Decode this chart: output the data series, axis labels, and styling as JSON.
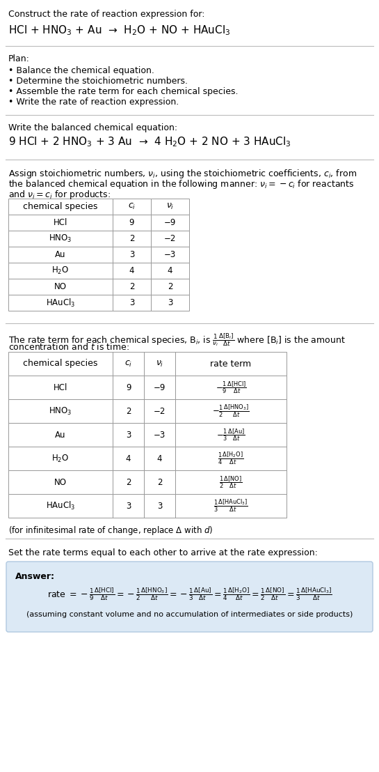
{
  "title_line1": "Construct the rate of reaction expression for:",
  "title_line2": "HCl + HNO$_3$ + Au  →  H$_2$O + NO + HAuCl$_3$",
  "plan_header": "Plan:",
  "plan_items": [
    "• Balance the chemical equation.",
    "• Determine the stoichiometric numbers.",
    "• Assemble the rate term for each chemical species.",
    "• Write the rate of reaction expression."
  ],
  "balanced_header": "Write the balanced chemical equation:",
  "balanced_eq": "9 HCl + 2 HNO$_3$ + 3 Au  →  4 H$_2$O + 2 NO + 3 HAuCl$_3$",
  "stoich_header_1": "Assign stoichiometric numbers, $\\nu_i$, using the stoichiometric coefficients, $c_i$, from",
  "stoich_header_2": "the balanced chemical equation in the following manner: $\\nu_i = -c_i$ for reactants",
  "stoich_header_3": "and $\\nu_i = c_i$ for products:",
  "table1_headers": [
    "chemical species",
    "$c_i$",
    "$\\nu_i$"
  ],
  "table1_rows": [
    [
      "HCl",
      "9",
      "−9"
    ],
    [
      "HNO$_3$",
      "2",
      "−2"
    ],
    [
      "Au",
      "3",
      "−3"
    ],
    [
      "H$_2$O",
      "4",
      "4"
    ],
    [
      "NO",
      "2",
      "2"
    ],
    [
      "HAuCl$_3$",
      "3",
      "3"
    ]
  ],
  "rate_term_header_1": "The rate term for each chemical species, B$_i$, is $\\frac{1}{\\nu_i}\\frac{\\Delta[\\mathrm{B}_i]}{\\Delta t}$ where [B$_i$] is the amount",
  "rate_term_header_2": "concentration and $t$ is time:",
  "table2_headers": [
    "chemical species",
    "$c_i$",
    "$\\nu_i$",
    "rate term"
  ],
  "table2_rows": [
    [
      "HCl",
      "9",
      "−9",
      "$-\\frac{1}{9}\\frac{\\Delta[\\mathrm{HCl}]}{\\Delta t}$"
    ],
    [
      "HNO$_3$",
      "2",
      "−2",
      "$-\\frac{1}{2}\\frac{\\Delta[\\mathrm{HNO_3}]}{\\Delta t}$"
    ],
    [
      "Au",
      "3",
      "−3",
      "$-\\frac{1}{3}\\frac{\\Delta[\\mathrm{Au}]}{\\Delta t}$"
    ],
    [
      "H$_2$O",
      "4",
      "4",
      "$\\frac{1}{4}\\frac{\\Delta[\\mathrm{H_2O}]}{\\Delta t}$"
    ],
    [
      "NO",
      "2",
      "2",
      "$\\frac{1}{2}\\frac{\\Delta[\\mathrm{NO}]}{\\Delta t}$"
    ],
    [
      "HAuCl$_3$",
      "3",
      "3",
      "$\\frac{1}{3}\\frac{\\Delta[\\mathrm{HAuCl_3}]}{\\Delta t}$"
    ]
  ],
  "infinitesimal_note": "(for infinitesimal rate of change, replace Δ with $d$)",
  "set_equal_text": "Set the rate terms equal to each other to arrive at the rate expression:",
  "answer_label": "Answer:",
  "answer_rate": "rate $= -\\frac{1}{9}\\frac{\\Delta[\\mathrm{HCl}]}{\\Delta t} = -\\frac{1}{2}\\frac{\\Delta[\\mathrm{HNO_3}]}{\\Delta t} = -\\frac{1}{3}\\frac{\\Delta[\\mathrm{Au}]}{\\Delta t} = \\frac{1}{4}\\frac{\\Delta[\\mathrm{H_2O}]}{\\Delta t} = \\frac{1}{2}\\frac{\\Delta[\\mathrm{NO}]}{\\Delta t} = \\frac{1}{3}\\frac{\\Delta[\\mathrm{HAuCl_3}]}{\\Delta t}$",
  "answer_note": "(assuming constant volume and no accumulation of intermediates or side products)",
  "answer_box_color": "#dce9f5",
  "bg_color": "#ffffff",
  "text_color": "#000000",
  "table_border_color": "#999999",
  "separator_color": "#aaaaaa"
}
